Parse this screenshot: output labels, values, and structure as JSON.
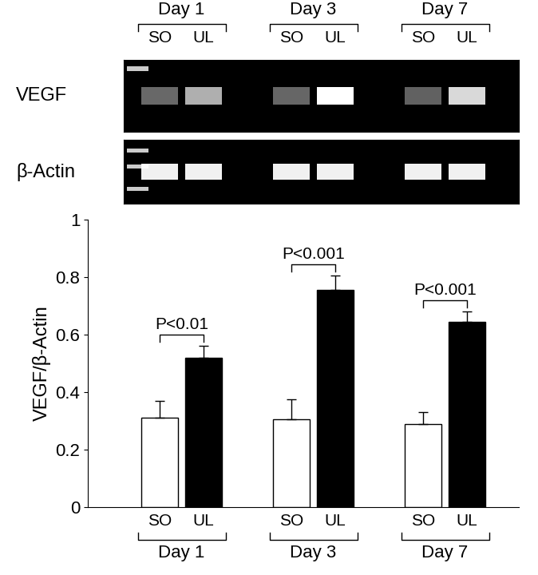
{
  "chart_data": {
    "type": "bar",
    "categories": [
      "SO",
      "UL",
      "SO",
      "UL",
      "SO",
      "UL"
    ],
    "groups": [
      "Day 1",
      "Day 3",
      "Day 7"
    ],
    "values": [
      0.31,
      0.52,
      0.305,
      0.755,
      0.29,
      0.645
    ],
    "errors": [
      0.06,
      0.04,
      0.07,
      0.05,
      0.04,
      0.035
    ],
    "colors": [
      "#ffffff",
      "#000000",
      "#ffffff",
      "#000000",
      "#ffffff",
      "#000000"
    ],
    "group_annotations": [
      "P<0.01",
      "P<0.001",
      "P<0.001"
    ],
    "ylabel": "VEGF/β-Actin",
    "ylim": [
      0,
      1
    ],
    "yticks": [
      0,
      0.2,
      0.4,
      0.6,
      0.8,
      1
    ],
    "grid": false
  },
  "gel": {
    "rows": [
      "VEGF",
      "β-Actin"
    ],
    "lanes": [
      "SO",
      "UL",
      "SO",
      "UL",
      "SO",
      "UL"
    ],
    "groups": [
      "Day 1",
      "Day 3",
      "Day 7"
    ]
  }
}
